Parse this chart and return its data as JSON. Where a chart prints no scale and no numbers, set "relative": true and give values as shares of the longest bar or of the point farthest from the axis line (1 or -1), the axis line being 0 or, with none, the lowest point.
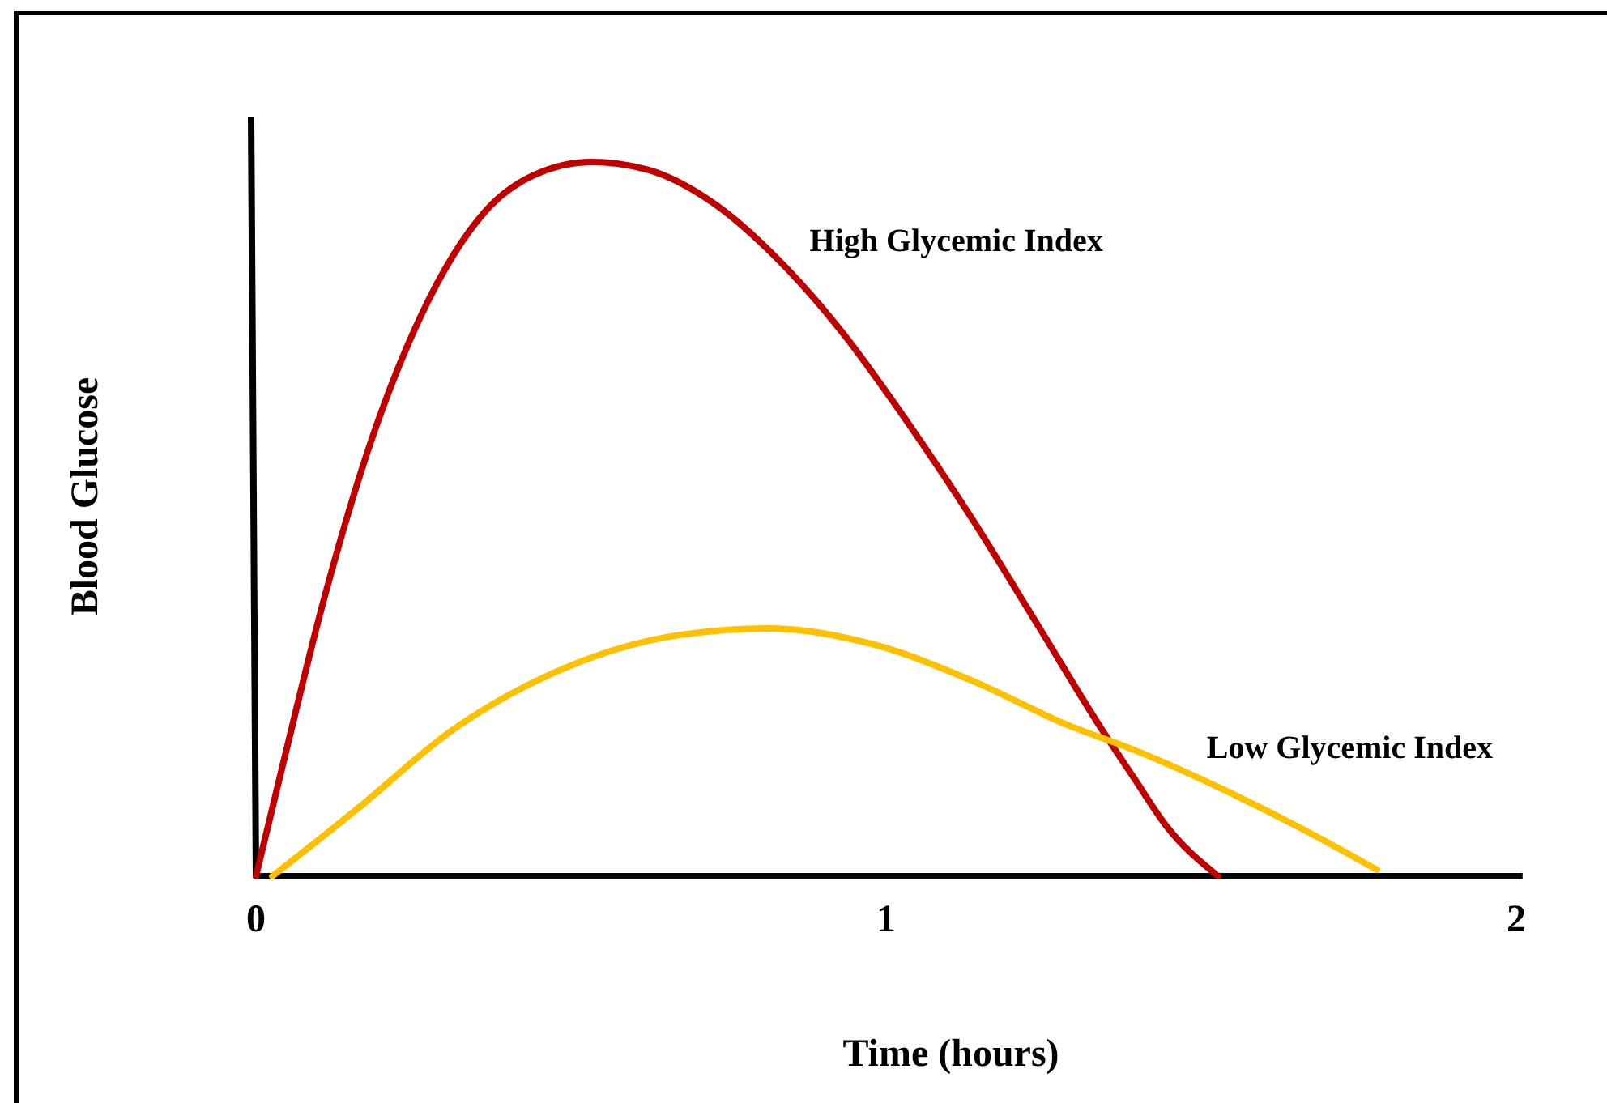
{
  "chart_data": {
    "type": "line",
    "relative": true,
    "xlabel": "Time (hours)",
    "ylabel": "Blood Glucose",
    "xlim": [
      0,
      2.01
    ],
    "xticks": [
      0,
      1,
      2
    ],
    "grid": false,
    "marker": "none",
    "line_style": "solid",
    "series": [
      {
        "name": "High Glycemic Index",
        "color": "#c00000",
        "x": [
          0,
          0.044,
          0.108,
          0.185,
          0.262,
          0.365,
          0.442,
          0.532,
          0.622,
          0.725,
          0.828,
          0.93,
          1.033,
          1.136,
          1.239,
          1.342,
          1.393,
          1.445,
          1.527
        ],
        "values": [
          0,
          0.161,
          0.388,
          0.615,
          0.785,
          0.932,
          0.982,
          1,
          0.989,
          0.943,
          0.864,
          0.762,
          0.637,
          0.501,
          0.354,
          0.206,
          0.138,
          0.07,
          0
        ]
      },
      {
        "name": "Low Glycemic Index",
        "color": "#ffc000",
        "x": [
          0.026,
          0.159,
          0.314,
          0.494,
          0.674,
          0.815,
          0.982,
          1.136,
          1.29,
          1.393,
          1.548,
          1.676,
          1.779
        ],
        "values": [
          0,
          0.093,
          0.206,
          0.293,
          0.338,
          0.347,
          0.324,
          0.274,
          0.211,
          0.177,
          0.116,
          0.059,
          0.009
        ]
      }
    ]
  }
}
